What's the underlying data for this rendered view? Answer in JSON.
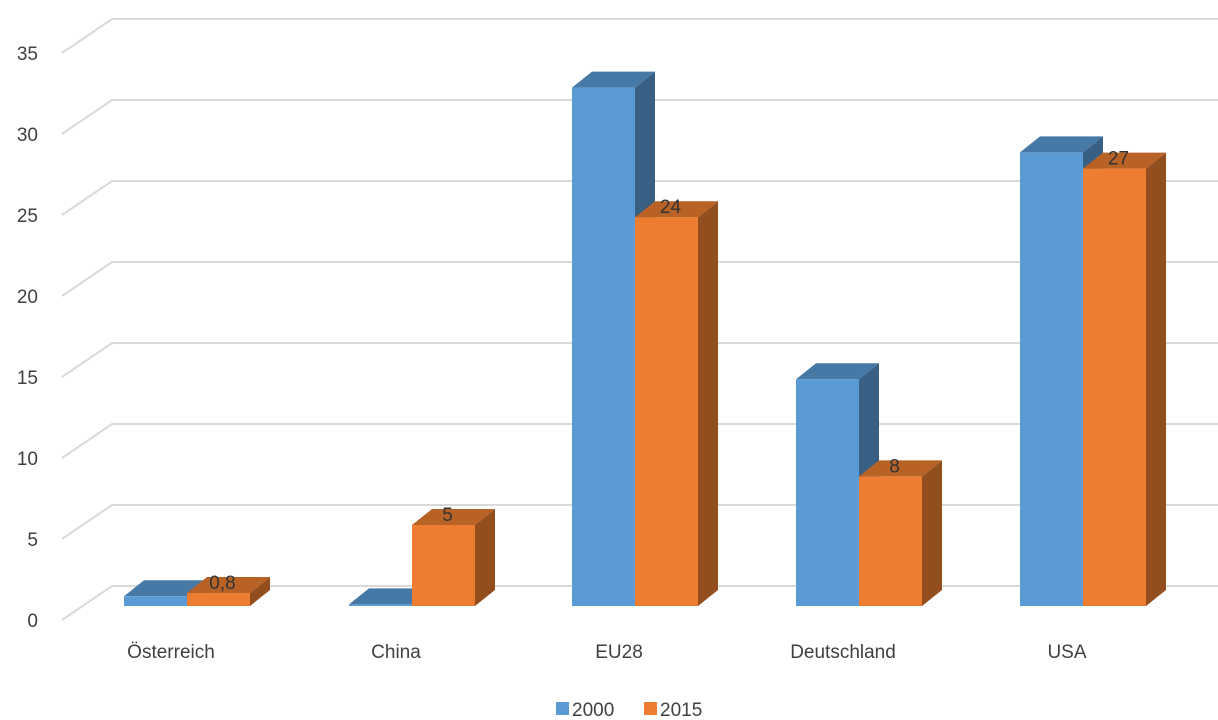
{
  "chart_data": {
    "type": "bar",
    "title": "",
    "xlabel": "",
    "ylabel": "",
    "ylim": [
      0,
      35
    ],
    "yticks": [
      0,
      5,
      10,
      15,
      20,
      25,
      30,
      35
    ],
    "grid": true,
    "legend_position": "bottom",
    "categories": [
      "Österreich",
      "China",
      "EU28",
      "Deutschland",
      "USA"
    ],
    "series": [
      {
        "name": "2000",
        "color": "#5B9BD5",
        "values": [
          0.6,
          0.1,
          32,
          14,
          28
        ],
        "data_labels": [
          "",
          "",
          "",
          "",
          ""
        ]
      },
      {
        "name": "2015",
        "color": "#ED7D31",
        "values": [
          0.8,
          5,
          24,
          8,
          27
        ],
        "data_labels": [
          "0,8",
          "5",
          "24",
          "8",
          "27"
        ]
      }
    ]
  }
}
